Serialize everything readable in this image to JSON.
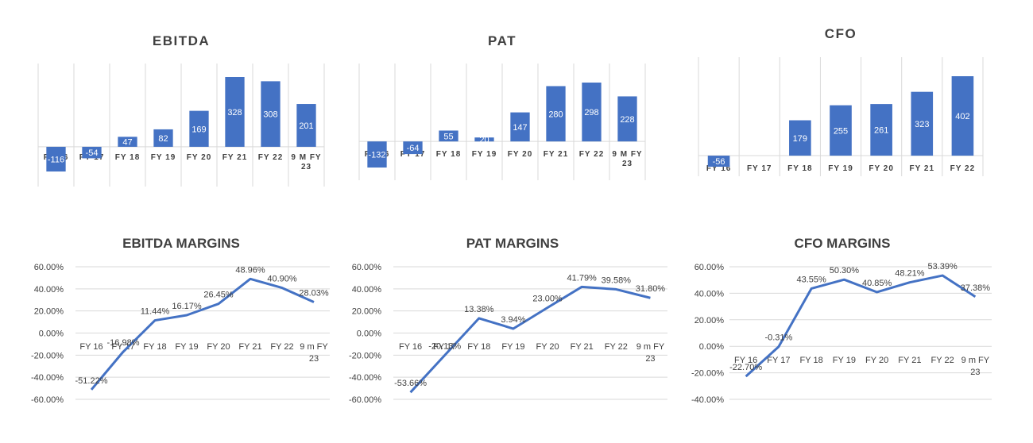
{
  "colors": {
    "bar": "#4472C4",
    "line": "#4472C4",
    "grid": "#D9D9D9",
    "text": "#404040",
    "bar_label": "#ffffff"
  },
  "chart_data": [
    {
      "id": "ebitda",
      "type": "bar",
      "title": "EBITDA",
      "categories": [
        "FY 16",
        "FY 17",
        "FY 18",
        "FY 19",
        "FY 20",
        "FY 21",
        "FY 22",
        "9 M FY 23"
      ],
      "values": [
        -116,
        -54,
        47,
        82,
        169,
        328,
        308,
        201
      ],
      "value_labels": [
        "-116",
        "-54",
        "47",
        "82",
        "169",
        "328",
        "308",
        "201"
      ],
      "ylim": [
        -116,
        328
      ],
      "grid": "vertical"
    },
    {
      "id": "pat",
      "type": "bar",
      "title": "PAT",
      "categories": [
        "FY 16",
        "FY 17",
        "FY 18",
        "FY 19",
        "FY 20",
        "FY 21",
        "FY 22",
        "9 M FY 23"
      ],
      "values": [
        -132,
        -64,
        55,
        20,
        147,
        280,
        298,
        228
      ],
      "value_labels": [
        "-132",
        "-64",
        "55",
        "20",
        "147",
        "280",
        "298",
        "228"
      ],
      "ylim": [
        -132,
        298
      ],
      "grid": "vertical"
    },
    {
      "id": "cfo",
      "type": "bar",
      "title": "CFO",
      "categories": [
        "FY 16",
        "FY 17",
        "FY 18",
        "FY 19",
        "FY 20",
        "FY 21",
        "FY 22"
      ],
      "values": [
        -56,
        0,
        179,
        255,
        261,
        323,
        402
      ],
      "value_labels": [
        "-56",
        "",
        "179",
        "255",
        "261",
        "323",
        "402"
      ],
      "ylim": [
        -56,
        402
      ],
      "grid": "vertical"
    },
    {
      "id": "ebitda-margins",
      "type": "line",
      "title": "EBITDA MARGINS",
      "categories": [
        "FY 16",
        "FY 17",
        "FY 18",
        "FY 19",
        "FY 20",
        "FY 21",
        "FY 22",
        "9 m FY 23"
      ],
      "values": [
        -51.22,
        -16.98,
        11.44,
        16.17,
        26.45,
        48.96,
        40.9,
        28.03
      ],
      "value_labels": [
        "-51.22%",
        "-16.98%",
        "11.44%",
        "16.17%",
        "26.45%",
        "48.96%",
        "40.90%",
        "28.03%"
      ],
      "yticks": [
        "60.00%",
        "40.00%",
        "20.00%",
        "0.00%",
        "-20.00%",
        "-40.00%",
        "-60.00%"
      ],
      "ylim": [
        -60,
        60
      ],
      "grid": "horizontal"
    },
    {
      "id": "pat-margins",
      "type": "line",
      "title": "PAT MARGINS",
      "categories": [
        "FY 16",
        "FY 17",
        "FY 18",
        "FY 19",
        "FY 20",
        "FY 21",
        "FY 22",
        "9 m FY 23"
      ],
      "values": [
        -53.66,
        -20.13,
        13.38,
        3.94,
        23.0,
        41.79,
        39.58,
        31.8
      ],
      "value_labels": [
        "-53.66%",
        "-20.13%",
        "13.38%",
        "3.94%",
        "23.00%",
        "41.79%",
        "39.58%",
        "31.80%"
      ],
      "yticks": [
        "60.00%",
        "40.00%",
        "20.00%",
        "0.00%",
        "-20.00%",
        "-40.00%",
        "-60.00%"
      ],
      "ylim": [
        -60,
        60
      ],
      "grid": "horizontal"
    },
    {
      "id": "cfo-margins",
      "type": "line",
      "title": "CFO MARGINS",
      "categories": [
        "FY 16",
        "FY 17",
        "FY 18",
        "FY 19",
        "FY 20",
        "FY 21",
        "FY 22",
        "9 m FY 23"
      ],
      "values": [
        -22.7,
        -0.31,
        43.55,
        50.3,
        40.85,
        48.21,
        53.39,
        37.38
      ],
      "value_labels": [
        "-22.70%",
        "-0.31%",
        "43.55%",
        "50.30%",
        "40.85%",
        "48.21%",
        "53.39%",
        "37.38%"
      ],
      "yticks": [
        "60.00%",
        "40.00%",
        "20.00%",
        "0.00%",
        "-20.00%",
        "-40.00%"
      ],
      "ylim": [
        -40,
        60
      ],
      "grid": "horizontal"
    }
  ]
}
